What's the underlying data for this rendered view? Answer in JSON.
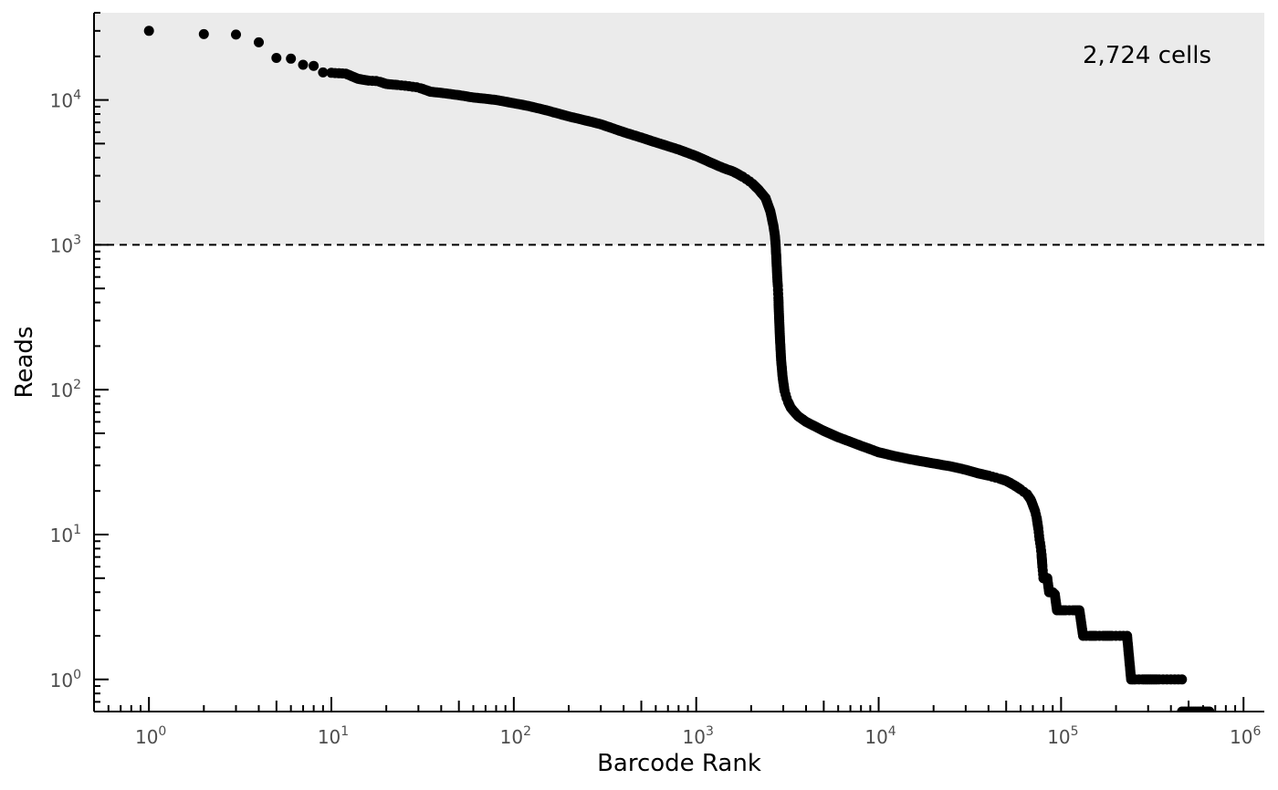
{
  "chart_data": {
    "type": "scatter",
    "title": "",
    "xlabel": "Barcode Rank",
    "ylabel": "Reads",
    "x_scale": "log10",
    "y_scale": "log10",
    "xlim": [
      0.5,
      1300000
    ],
    "ylim": [
      0.6,
      40000
    ],
    "x_ticks": [
      1,
      10,
      100,
      1000,
      10000,
      100000,
      1000000
    ],
    "y_ticks": [
      1,
      10,
      100,
      1000,
      10000
    ],
    "x_tick_labels": [
      {
        "base": "10",
        "exp": "0"
      },
      {
        "base": "10",
        "exp": "1"
      },
      {
        "base": "10",
        "exp": "2"
      },
      {
        "base": "10",
        "exp": "3"
      },
      {
        "base": "10",
        "exp": "4"
      },
      {
        "base": "10",
        "exp": "5"
      },
      {
        "base": "10",
        "exp": "6"
      }
    ],
    "y_tick_labels": [
      {
        "base": "10",
        "exp": "0"
      },
      {
        "base": "10",
        "exp": "1"
      },
      {
        "base": "10",
        "exp": "2"
      },
      {
        "base": "10",
        "exp": "3"
      },
      {
        "base": "10",
        "exp": "4"
      }
    ],
    "threshold_reads": 1000,
    "cell_region_shaded": true,
    "annotation": "2,724 cells",
    "annotation_position": "top-right",
    "grid": false,
    "legend": "none",
    "colors": {
      "points": "#000000",
      "shade": "#ebebeb",
      "threshold_line": "#000000"
    },
    "series": [
      {
        "points": [
          [
            1,
            30000
          ],
          [
            2,
            28500
          ],
          [
            3,
            28300
          ],
          [
            4,
            25000
          ],
          [
            5,
            19500
          ],
          [
            6,
            19300
          ],
          [
            7,
            17500
          ],
          [
            8,
            17200
          ],
          [
            9,
            15500
          ],
          [
            10,
            15400
          ],
          [
            11,
            15300
          ],
          [
            12,
            15200
          ],
          [
            14,
            14000
          ],
          [
            16,
            13600
          ],
          [
            18,
            13500
          ],
          [
            20,
            12900
          ],
          [
            23,
            12700
          ],
          [
            26,
            12500
          ],
          [
            30,
            12200
          ],
          [
            35,
            11400
          ],
          [
            40,
            11200
          ],
          [
            50,
            10800
          ],
          [
            60,
            10400
          ],
          [
            70,
            10200
          ],
          [
            80,
            10000
          ],
          [
            100,
            9500
          ],
          [
            120,
            9100
          ],
          [
            150,
            8500
          ],
          [
            200,
            7700
          ],
          [
            250,
            7200
          ],
          [
            300,
            6800
          ],
          [
            400,
            6000
          ],
          [
            500,
            5500
          ],
          [
            600,
            5100
          ],
          [
            700,
            4800
          ],
          [
            800,
            4550
          ],
          [
            1000,
            4100
          ],
          [
            1200,
            3700
          ],
          [
            1400,
            3400
          ],
          [
            1600,
            3200
          ],
          [
            1800,
            2950
          ],
          [
            2000,
            2700
          ],
          [
            2200,
            2400
          ],
          [
            2400,
            2100
          ],
          [
            2550,
            1700
          ],
          [
            2650,
            1350
          ],
          [
            2700,
            1150
          ],
          [
            2724,
            1000
          ],
          [
            2750,
            800
          ],
          [
            2780,
            600
          ],
          [
            2800,
            520
          ],
          [
            2820,
            430
          ],
          [
            2850,
            300
          ],
          [
            2880,
            220
          ],
          [
            2920,
            160
          ],
          [
            2980,
            120
          ],
          [
            3050,
            98
          ],
          [
            3150,
            85
          ],
          [
            3300,
            75
          ],
          [
            3600,
            66
          ],
          [
            4000,
            60
          ],
          [
            5000,
            52
          ],
          [
            6000,
            47
          ],
          [
            8000,
            41
          ],
          [
            10000,
            37
          ],
          [
            12000,
            35
          ],
          [
            15000,
            33
          ],
          [
            20000,
            31
          ],
          [
            25000,
            29.5
          ],
          [
            30000,
            28
          ],
          [
            35000,
            26.5
          ],
          [
            40000,
            25.5
          ],
          [
            45000,
            24.5
          ],
          [
            50000,
            23.5
          ],
          [
            55000,
            22
          ],
          [
            60000,
            20.5
          ],
          [
            65000,
            19
          ],
          [
            68000,
            17.5
          ],
          [
            70000,
            16
          ],
          [
            72000,
            14.5
          ],
          [
            73500,
            13
          ],
          [
            75000,
            11
          ],
          [
            76000,
            9.5
          ],
          [
            77000,
            8.5
          ],
          [
            78000,
            7.5
          ],
          [
            79000,
            6
          ],
          [
            80000,
            5
          ],
          [
            84000,
            5
          ],
          [
            86000,
            4
          ],
          [
            92000,
            4
          ],
          [
            95000,
            3
          ],
          [
            98000,
            3
          ],
          [
            106000,
            3
          ],
          [
            116000,
            3
          ],
          [
            126000,
            3
          ],
          [
            132000,
            2
          ],
          [
            140000,
            2
          ],
          [
            155000,
            2
          ],
          [
            170000,
            2
          ],
          [
            190000,
            2
          ],
          [
            210000,
            2
          ],
          [
            230000,
            2
          ],
          [
            242000,
            1
          ],
          [
            255000,
            1
          ],
          [
            280000,
            1
          ],
          [
            310000,
            1
          ],
          [
            345000,
            1
          ],
          [
            380000,
            1
          ],
          [
            420000,
            1
          ],
          [
            460000,
            1
          ]
        ]
      }
    ]
  }
}
